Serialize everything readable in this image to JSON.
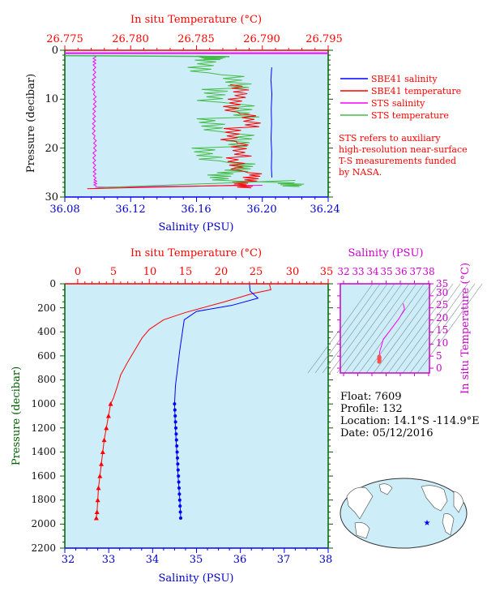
{
  "colors": {
    "plot_bg": "#cdeef9",
    "salinity_axis": "#0000ff",
    "temperature_axis": "#ff0000",
    "pressure_axis": "#006000",
    "ts_axis": "#ff00ff",
    "sbe_salinity": "#0000ff",
    "sbe_temperature": "#ff0000",
    "sts_salinity": "#ff00ff",
    "sts_temperature": "#44bb44"
  },
  "chart_data": [
    {
      "type": "line",
      "panel": "near-surface profile",
      "top_axis_label": "In situ Temperature (°C)",
      "top_ticks": [
        "26.775",
        "26.780",
        "26.785",
        "26.790",
        "26.795"
      ],
      "top_range": [
        26.775,
        26.795
      ],
      "bottom_axis_label": "Salinity (PSU)",
      "bottom_ticks": [
        "36.08",
        "36.12",
        "36.16",
        "36.20",
        "36.24"
      ],
      "bottom_range": [
        36.08,
        36.24
      ],
      "left_axis_label": "Pressure (decibar)",
      "left_ticks": [
        "0",
        "10",
        "20",
        "30"
      ],
      "y_range": [
        0,
        30
      ],
      "legend": [
        {
          "label": "SBE41 salinity",
          "color": "#0000ff"
        },
        {
          "label": "SBE41 temperature",
          "color": "#ff0000"
        },
        {
          "label": "STS salinity",
          "color": "#ff00ff"
        },
        {
          "label": "STS temperature",
          "color": "#44bb44"
        }
      ],
      "note": [
        "STS refers to auxiliary",
        "high-resolution near-surface",
        "T-S measurements funded",
        "by NASA."
      ],
      "series": [
        {
          "name": "SBE41 salinity",
          "axis": "salinity",
          "color": "#0000ff",
          "points": [
            [
              36.2057,
              3.5
            ],
            [
              36.2052,
              6
            ],
            [
              36.2058,
              9
            ],
            [
              36.2054,
              12
            ],
            [
              36.2056,
              15
            ],
            [
              36.2053,
              18
            ],
            [
              36.2057,
              21
            ],
            [
              36.2055,
              24
            ],
            [
              36.2058,
              26
            ]
          ]
        },
        {
          "name": "STS salinity",
          "axis": "salinity",
          "color": "#ff00ff",
          "points": [
            [
              36.24,
              0.5
            ],
            [
              36.098,
              1
            ],
            [
              36.098,
              3
            ],
            [
              36.0975,
              6
            ],
            [
              36.0982,
              9
            ],
            [
              36.0978,
              12
            ],
            [
              36.0976,
              15
            ],
            [
              36.0983,
              18
            ],
            [
              36.0979,
              21
            ],
            [
              36.0981,
              24
            ],
            [
              36.0985,
              26.5
            ],
            [
              36.0995,
              28
            ]
          ]
        },
        {
          "name": "SBE41 temperature",
          "axis": "temperature",
          "color": "#ff0000",
          "points": [
            [
              26.7875,
              4
            ],
            [
              26.7882,
              7
            ],
            [
              26.7878,
              10
            ],
            [
              26.7891,
              13
            ],
            [
              26.7876,
              16
            ],
            [
              26.7884,
              19
            ],
            [
              26.7879,
              22
            ],
            [
              26.7893,
              25
            ],
            [
              26.7885,
              27
            ],
            [
              26.7767,
              28.3
            ]
          ]
        },
        {
          "name": "STS temperature",
          "axis": "temperature",
          "color": "#44bb44",
          "points": [
            [
              26.775,
              1
            ],
            [
              26.786,
              1.2
            ],
            [
              26.7855,
              2
            ],
            [
              26.788,
              5
            ],
            [
              26.7862,
              8
            ],
            [
              26.7886,
              11
            ],
            [
              26.786,
              14
            ],
            [
              26.7884,
              17
            ],
            [
              26.7858,
              20
            ],
            [
              26.7883,
              23
            ],
            [
              26.787,
              25
            ],
            [
              26.792,
              27
            ],
            [
              26.7769,
              28
            ]
          ]
        }
      ]
    },
    {
      "type": "line",
      "panel": "full-depth profile",
      "top_axis_label": "In situ Temperature (°C)",
      "top_ticks": [
        "0",
        "5",
        "10",
        "15",
        "20",
        "25",
        "30",
        "35"
      ],
      "top_range": [
        0,
        35
      ],
      "bottom_axis_label": "Salinity (PSU)",
      "bottom_ticks": [
        "32",
        "33",
        "34",
        "35",
        "36",
        "37",
        "38"
      ],
      "bottom_range": [
        32,
        38
      ],
      "left_axis_label": "Pressure (decibar)",
      "left_ticks": [
        "0",
        "200",
        "400",
        "600",
        "800",
        "1000",
        "1200",
        "1400",
        "1600",
        "1800",
        "2000",
        "2200"
      ],
      "y_range": [
        0,
        2200
      ],
      "series": [
        {
          "name": "Temperature",
          "axis": "temperature",
          "color": "#ff0000",
          "points": [
            [
              26.8,
              5
            ],
            [
              27.0,
              50
            ],
            [
              24.5,
              80
            ],
            [
              20.5,
              150
            ],
            [
              15.0,
              240
            ],
            [
              12.0,
              300
            ],
            [
              10.0,
              380
            ],
            [
              9.0,
              450
            ],
            [
              8.0,
              550
            ],
            [
              7.0,
              650
            ],
            [
              6.0,
              760
            ],
            [
              5.5,
              860
            ],
            [
              5.0,
              950
            ],
            [
              4.6,
              1000
            ],
            [
              4.3,
              1100
            ],
            [
              4.0,
              1200
            ],
            [
              3.7,
              1300
            ],
            [
              3.5,
              1400
            ],
            [
              3.3,
              1500
            ],
            [
              3.1,
              1600
            ],
            [
              2.9,
              1700
            ],
            [
              2.8,
              1800
            ],
            [
              2.7,
              1900
            ],
            [
              2.6,
              1950
            ]
          ]
        },
        {
          "name": "Salinity",
          "axis": "salinity",
          "color": "#0000ff",
          "points": [
            [
              36.21,
              5
            ],
            [
              36.22,
              60
            ],
            [
              36.4,
              120
            ],
            [
              35.8,
              180
            ],
            [
              35.0,
              230
            ],
            [
              34.72,
              300
            ],
            [
              34.68,
              400
            ],
            [
              34.62,
              550
            ],
            [
              34.57,
              700
            ],
            [
              34.52,
              850
            ],
            [
              34.5,
              1000
            ],
            [
              34.52,
              1200
            ],
            [
              34.55,
              1400
            ],
            [
              34.58,
              1600
            ],
            [
              34.62,
              1800
            ],
            [
              34.64,
              1950
            ]
          ]
        }
      ]
    },
    {
      "type": "line",
      "panel": "T-S diagram",
      "x_axis_label": "Salinity (PSU)",
      "x_ticks": [
        "32",
        "33",
        "34",
        "35",
        "36",
        "37",
        "38"
      ],
      "x_range": [
        32,
        38
      ],
      "y_axis_label": "In situ Temperature (°C)",
      "y_ticks": [
        "0",
        "5",
        "10",
        "15",
        "20",
        "25",
        "30",
        "35"
      ],
      "y_range": [
        0,
        35
      ],
      "series": [
        {
          "name": "T-S curve",
          "color": "#ff00ff",
          "points": [
            [
              36.2,
              26.8
            ],
            [
              36.3,
              24.5
            ],
            [
              35.9,
              20.5
            ],
            [
              35.2,
              15
            ],
            [
              34.8,
              12
            ],
            [
              34.66,
              9
            ],
            [
              34.55,
              7
            ],
            [
              34.52,
              5
            ],
            [
              34.5,
              4.5
            ],
            [
              34.55,
              3.5
            ],
            [
              34.6,
              2.9
            ],
            [
              34.64,
              2.6
            ]
          ]
        }
      ]
    }
  ],
  "info": {
    "float": "Float:  7609",
    "profile": "Profile:  132",
    "location": "Location:  14.1°S  -114.9°E",
    "date": "Date:  05/12/2016"
  }
}
